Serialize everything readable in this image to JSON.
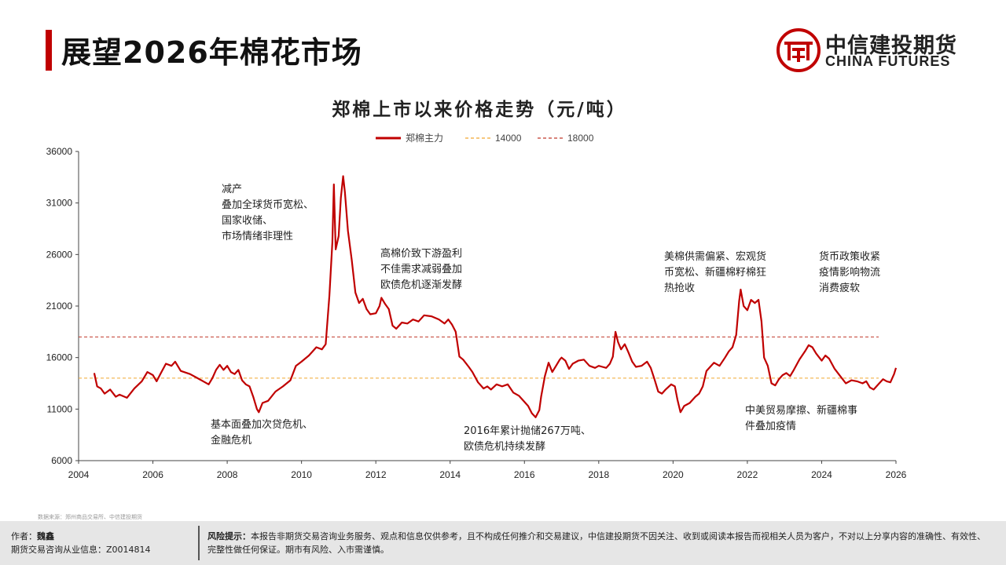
{
  "header": {
    "title": "展望2026年棉花市场",
    "logo_cn": "中信建投期货",
    "logo_en": "CHINA FUTURES"
  },
  "colors": {
    "accent": "#c00000",
    "line_14000": "#f0a830",
    "line_18000": "#c0392b"
  },
  "chart_data": {
    "type": "line",
    "title": "郑棉上市以来价格走势（元/吨）",
    "legend": [
      "郑棉主力",
      "14000",
      "18000"
    ],
    "legend_position": "top-center",
    "xlim": [
      2004,
      2026
    ],
    "ylim": [
      6000,
      36000
    ],
    "x_ticks": [
      "2004",
      "2006",
      "2008",
      "2010",
      "2012",
      "2014",
      "2016",
      "2018",
      "2020",
      "2022",
      "2024",
      "2026"
    ],
    "y_ticks": [
      "36000",
      "31000",
      "26000",
      "21000",
      "16000",
      "11000",
      "6000"
    ],
    "grid": false,
    "reference_lines": [
      {
        "name": "14000",
        "value": 14000,
        "style": "dashed"
      },
      {
        "name": "18000",
        "value": 18000,
        "style": "dashed"
      }
    ],
    "series": [
      {
        "name": "郑棉主力",
        "points": [
          [
            2004.42,
            14500
          ],
          [
            2004.5,
            13200
          ],
          [
            2004.6,
            13000
          ],
          [
            2004.7,
            12500
          ],
          [
            2004.85,
            12900
          ],
          [
            2005.0,
            12200
          ],
          [
            2005.1,
            12400
          ],
          [
            2005.3,
            12100
          ],
          [
            2005.5,
            13000
          ],
          [
            2005.7,
            13700
          ],
          [
            2005.85,
            14600
          ],
          [
            2006.0,
            14300
          ],
          [
            2006.1,
            13700
          ],
          [
            2006.2,
            14400
          ],
          [
            2006.35,
            15400
          ],
          [
            2006.5,
            15200
          ],
          [
            2006.6,
            15600
          ],
          [
            2006.75,
            14700
          ],
          [
            2007.0,
            14400
          ],
          [
            2007.2,
            14000
          ],
          [
            2007.5,
            13400
          ],
          [
            2007.6,
            14000
          ],
          [
            2007.7,
            14800
          ],
          [
            2007.8,
            15300
          ],
          [
            2007.9,
            14800
          ],
          [
            2008.0,
            15200
          ],
          [
            2008.1,
            14600
          ],
          [
            2008.2,
            14400
          ],
          [
            2008.3,
            14800
          ],
          [
            2008.4,
            13800
          ],
          [
            2008.5,
            13400
          ],
          [
            2008.6,
            13200
          ],
          [
            2008.7,
            12200
          ],
          [
            2008.8,
            11000
          ],
          [
            2008.85,
            10700
          ],
          [
            2008.95,
            11600
          ],
          [
            2009.1,
            11800
          ],
          [
            2009.3,
            12700
          ],
          [
            2009.5,
            13200
          ],
          [
            2009.7,
            13800
          ],
          [
            2009.85,
            15200
          ],
          [
            2010.0,
            15600
          ],
          [
            2010.2,
            16200
          ],
          [
            2010.4,
            17000
          ],
          [
            2010.55,
            16800
          ],
          [
            2010.65,
            17300
          ],
          [
            2010.75,
            22000
          ],
          [
            2010.83,
            27200
          ],
          [
            2010.87,
            32800
          ],
          [
            2010.92,
            26500
          ],
          [
            2011.0,
            27800
          ],
          [
            2011.06,
            31500
          ],
          [
            2011.12,
            33600
          ],
          [
            2011.17,
            32000
          ],
          [
            2011.25,
            28300
          ],
          [
            2011.35,
            25500
          ],
          [
            2011.45,
            22300
          ],
          [
            2011.55,
            21300
          ],
          [
            2011.65,
            21700
          ],
          [
            2011.75,
            20700
          ],
          [
            2011.85,
            20200
          ],
          [
            2012.0,
            20300
          ],
          [
            2012.1,
            21000
          ],
          [
            2012.15,
            21800
          ],
          [
            2012.25,
            21200
          ],
          [
            2012.35,
            20700
          ],
          [
            2012.45,
            19100
          ],
          [
            2012.55,
            18800
          ],
          [
            2012.7,
            19400
          ],
          [
            2012.85,
            19300
          ],
          [
            2013.0,
            19700
          ],
          [
            2013.15,
            19500
          ],
          [
            2013.3,
            20100
          ],
          [
            2013.5,
            20000
          ],
          [
            2013.7,
            19700
          ],
          [
            2013.85,
            19300
          ],
          [
            2013.95,
            19700
          ],
          [
            2014.05,
            19200
          ],
          [
            2014.15,
            18500
          ],
          [
            2014.25,
            16100
          ],
          [
            2014.35,
            15800
          ],
          [
            2014.5,
            15100
          ],
          [
            2014.6,
            14600
          ],
          [
            2014.75,
            13600
          ],
          [
            2014.9,
            13000
          ],
          [
            2015.0,
            13200
          ],
          [
            2015.1,
            12900
          ],
          [
            2015.25,
            13400
          ],
          [
            2015.4,
            13200
          ],
          [
            2015.55,
            13400
          ],
          [
            2015.7,
            12600
          ],
          [
            2015.85,
            12300
          ],
          [
            2016.0,
            11700
          ],
          [
            2016.1,
            11300
          ],
          [
            2016.2,
            10600
          ],
          [
            2016.3,
            10200
          ],
          [
            2016.4,
            10900
          ],
          [
            2016.45,
            12200
          ],
          [
            2016.55,
            14200
          ],
          [
            2016.65,
            15500
          ],
          [
            2016.75,
            14600
          ],
          [
            2016.85,
            15200
          ],
          [
            2016.95,
            15800
          ],
          [
            2017.0,
            16000
          ],
          [
            2017.1,
            15700
          ],
          [
            2017.2,
            14900
          ],
          [
            2017.3,
            15400
          ],
          [
            2017.45,
            15700
          ],
          [
            2017.6,
            15800
          ],
          [
            2017.75,
            15200
          ],
          [
            2017.9,
            15000
          ],
          [
            2018.0,
            15200
          ],
          [
            2018.1,
            15100
          ],
          [
            2018.2,
            15000
          ],
          [
            2018.3,
            15400
          ],
          [
            2018.38,
            16100
          ],
          [
            2018.45,
            18500
          ],
          [
            2018.52,
            17500
          ],
          [
            2018.6,
            16800
          ],
          [
            2018.7,
            17300
          ],
          [
            2018.8,
            16500
          ],
          [
            2018.9,
            15600
          ],
          [
            2019.0,
            15100
          ],
          [
            2019.15,
            15200
          ],
          [
            2019.3,
            15600
          ],
          [
            2019.4,
            15000
          ],
          [
            2019.5,
            13900
          ],
          [
            2019.6,
            12700
          ],
          [
            2019.7,
            12500
          ],
          [
            2019.8,
            12900
          ],
          [
            2019.95,
            13400
          ],
          [
            2020.05,
            13200
          ],
          [
            2020.12,
            11900
          ],
          [
            2020.2,
            10700
          ],
          [
            2020.3,
            11300
          ],
          [
            2020.45,
            11600
          ],
          [
            2020.6,
            12200
          ],
          [
            2020.7,
            12500
          ],
          [
            2020.8,
            13200
          ],
          [
            2020.9,
            14700
          ],
          [
            2021.0,
            15100
          ],
          [
            2021.1,
            15500
          ],
          [
            2021.25,
            15200
          ],
          [
            2021.4,
            16000
          ],
          [
            2021.5,
            16600
          ],
          [
            2021.6,
            17000
          ],
          [
            2021.7,
            18200
          ],
          [
            2021.78,
            21500
          ],
          [
            2021.82,
            22600
          ],
          [
            2021.9,
            21000
          ],
          [
            2022.0,
            20600
          ],
          [
            2022.1,
            21600
          ],
          [
            2022.2,
            21300
          ],
          [
            2022.3,
            21600
          ],
          [
            2022.38,
            19500
          ],
          [
            2022.45,
            16000
          ],
          [
            2022.55,
            15200
          ],
          [
            2022.65,
            13500
          ],
          [
            2022.75,
            13300
          ],
          [
            2022.85,
            13900
          ],
          [
            2022.95,
            14300
          ],
          [
            2023.05,
            14500
          ],
          [
            2023.15,
            14200
          ],
          [
            2023.25,
            14800
          ],
          [
            2023.4,
            15800
          ],
          [
            2023.55,
            16600
          ],
          [
            2023.65,
            17200
          ],
          [
            2023.75,
            17000
          ],
          [
            2023.85,
            16400
          ],
          [
            2024.0,
            15700
          ],
          [
            2024.1,
            16200
          ],
          [
            2024.2,
            15900
          ],
          [
            2024.35,
            14900
          ],
          [
            2024.5,
            14200
          ],
          [
            2024.65,
            13500
          ],
          [
            2024.8,
            13800
          ],
          [
            2024.95,
            13700
          ],
          [
            2025.1,
            13500
          ],
          [
            2025.2,
            13700
          ],
          [
            2025.3,
            13100
          ],
          [
            2025.4,
            12900
          ],
          [
            2025.55,
            13500
          ],
          [
            2025.65,
            13900
          ],
          [
            2025.75,
            13700
          ],
          [
            2025.85,
            13600
          ],
          [
            2025.95,
            14400
          ],
          [
            2026.0,
            15000
          ]
        ]
      }
    ]
  },
  "annotations": [
    {
      "text": "减产\n叠加全球货币宽松、\n国家收储、\n市场情绪非理性"
    },
    {
      "text": "高棉价致下游盈利\n不佳需求减弱叠加\n欧债危机逐渐发酵"
    },
    {
      "text": "美棉供需偏紧、宏观货\n币宽松、新疆棉籽棉狂\n热抢收"
    },
    {
      "text": "货币政策收紧\n疫情影响物流\n消费疲软"
    },
    {
      "text": "基本面叠加次贷危机、\n金融危机"
    },
    {
      "text": "2016年累计抛储267万吨、\n欧债危机持续发酵"
    },
    {
      "text": "中美贸易摩擦、新疆棉事\n件叠加疫情"
    }
  ],
  "footer": {
    "source": "数据来源：郑州商品交易所、中信建投期货",
    "author_label": "作者：",
    "author_name": "魏鑫",
    "license": "期货交易咨询从业信息：Z0014814",
    "risk_label": "风险提示：",
    "risk_text": "本报告非期货交易咨询业务服务、观点和信息仅供参考，且不构成任何推介和交易建议，中信建投期货不因关注、收到或阅读本报告而视相关人员为客户，不对以上分享内容的准确性、有效性、完整性做任何保证。期市有风险、入市需谨慎。"
  }
}
